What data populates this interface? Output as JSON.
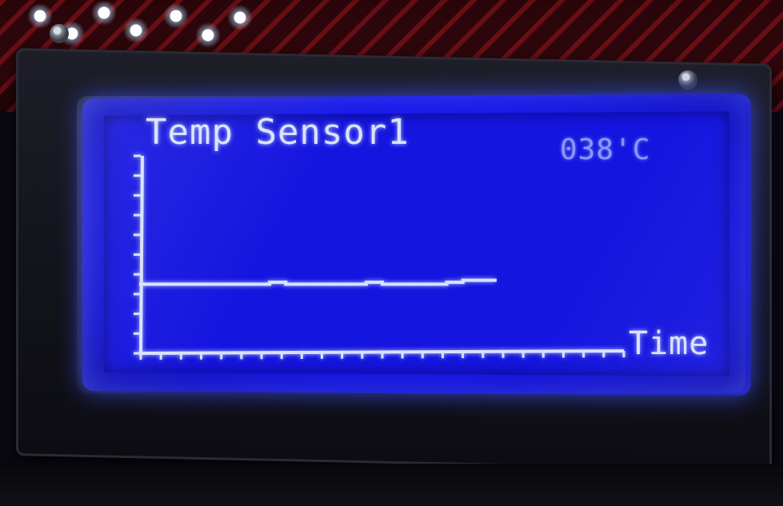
{
  "display": {
    "title": "Temp Sensor1",
    "reading": "038'C",
    "x_axis_label": "Time"
  },
  "chart_data": {
    "type": "line",
    "title": "Temp Sensor1",
    "xlabel": "Time",
    "ylabel": "",
    "x": [
      0,
      1,
      2,
      3,
      4,
      5,
      6,
      7,
      8,
      9,
      10,
      11,
      12,
      13,
      14,
      15,
      16,
      17,
      18,
      19,
      20,
      21,
      22
    ],
    "y": [
      35,
      35,
      35,
      35,
      35,
      35,
      35,
      35,
      35,
      36,
      35,
      35,
      35,
      35,
      35,
      36,
      35,
      35,
      35,
      35,
      36,
      37,
      37
    ],
    "xlim": [
      0,
      30
    ],
    "ylim": [
      0,
      100
    ],
    "grid": false,
    "colors": {
      "background": "#1515e0",
      "foreground": "#d8e2ff"
    }
  }
}
